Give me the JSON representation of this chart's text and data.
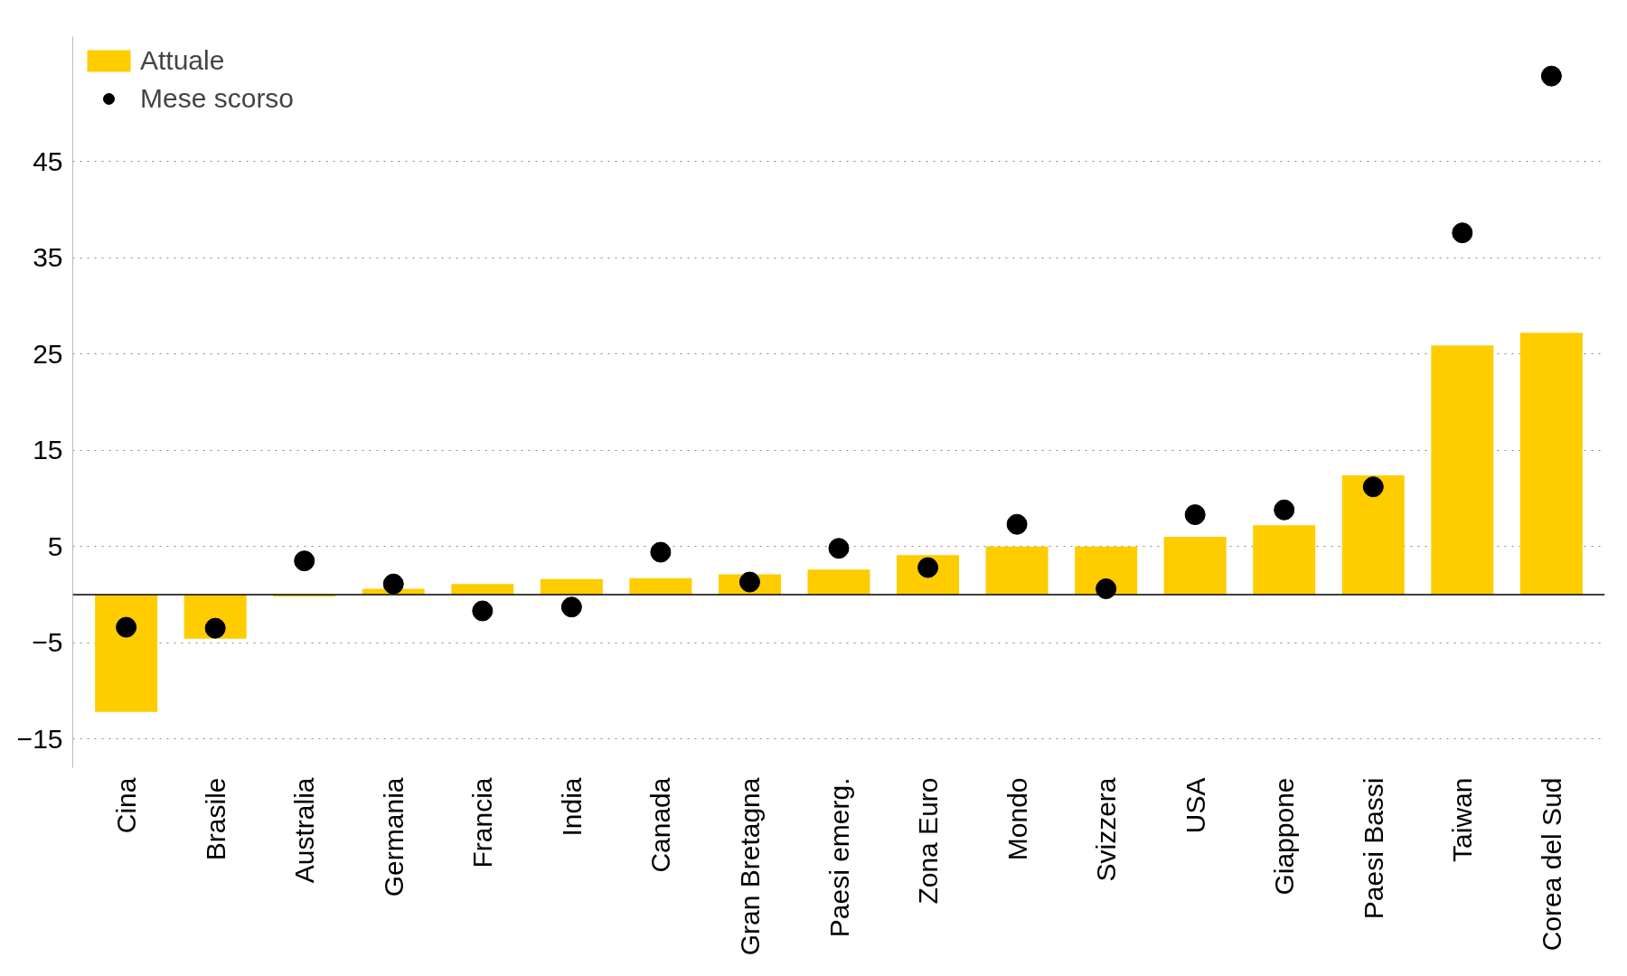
{
  "chart_data": {
    "type": "bar",
    "categories": [
      "Cina",
      "Brasile",
      "Australia",
      "Germania",
      "Francia",
      "India",
      "Canada",
      "Gran Bretagna",
      "Paesi emerg.",
      "Zona Euro",
      "Mondo",
      "Svizzera",
      "USA",
      "Giappone",
      "Paesi Bassi",
      "Taiwan",
      "Corea del Sud"
    ],
    "series": [
      {
        "name": "Attuale",
        "color": "#ffcc00",
        "values": [
          -12.2,
          -4.6,
          -0.2,
          0.6,
          1.1,
          1.6,
          1.7,
          2.1,
          2.6,
          4.1,
          5.0,
          5.0,
          6.0,
          7.2,
          12.4,
          25.9,
          27.2
        ]
      },
      {
        "name": "Mese scorso",
        "type": "scatter",
        "color": "#000000",
        "values": [
          -3.4,
          -3.5,
          3.5,
          1.1,
          -1.7,
          -1.3,
          4.4,
          1.3,
          4.8,
          2.8,
          7.3,
          0.6,
          8.3,
          8.8,
          11.2,
          37.6,
          53.9
        ]
      }
    ],
    "ylim": [
      -18,
      58
    ],
    "yticks": [
      -15,
      -5,
      5,
      15,
      25,
      35,
      45
    ],
    "grid": "y",
    "legend": "top left",
    "marker": "circle",
    "ref_lines": [
      {
        "axis": "y",
        "value": 0,
        "color": "#000000"
      }
    ]
  }
}
